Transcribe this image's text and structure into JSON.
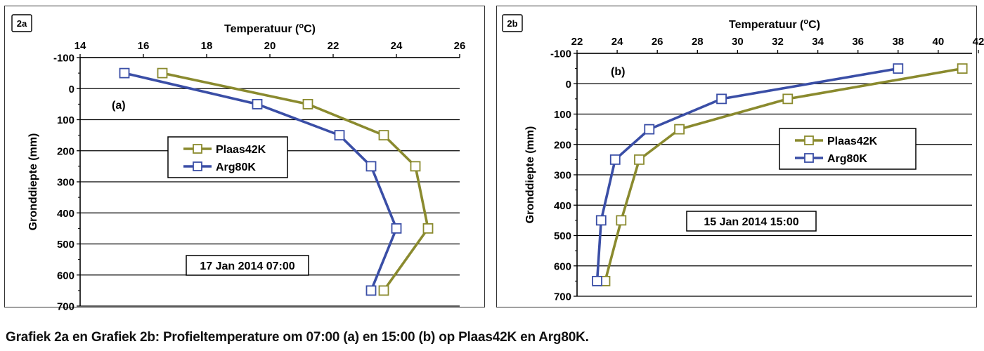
{
  "caption": "Grafiek 2a en Grafiek 2b: Profieltemperature om 07:00 (a) en 15:00 (b) op Plaas42K en Arg80K.",
  "colors": {
    "Plaas42K": "#8a8a2e",
    "Arg80K": "#3a4ea6",
    "grid": "#000000"
  },
  "chart_data": [
    {
      "type": "line",
      "panel_tag": "2a",
      "panel_letter": "(a)",
      "title": "Temperatuur (oC)",
      "xlabel": "Temperatuur (oC)",
      "ylabel": "Gronddiepte (mm)",
      "xlim": [
        14,
        26
      ],
      "xticks": [
        14,
        16,
        18,
        20,
        22,
        24,
        26
      ],
      "ylim": [
        -100,
        700
      ],
      "yticks": [
        -100,
        0,
        100,
        200,
        300,
        400,
        500,
        600,
        700
      ],
      "y_inverted": true,
      "annotation": "17 Jan 2014 07:00",
      "legend_placement": "left-center",
      "series": [
        {
          "name": "Plaas42K",
          "x": [
            16.6,
            21.2,
            23.6,
            24.6,
            25.0,
            23.6
          ],
          "y": [
            -50,
            50,
            150,
            250,
            450,
            650
          ]
        },
        {
          "name": "Arg80K",
          "x": [
            15.4,
            19.6,
            22.2,
            23.2,
            24.0,
            23.2
          ],
          "y": [
            -50,
            50,
            150,
            250,
            450,
            650
          ]
        }
      ]
    },
    {
      "type": "line",
      "panel_tag": "2b",
      "panel_letter": "(b)",
      "title": "Temperatuur (oC)",
      "xlabel": "Temperatuur (oC)",
      "ylabel": "Gronddiepte (mm)",
      "xlim": [
        22,
        42
      ],
      "xticks": [
        22,
        24,
        26,
        28,
        30,
        32,
        34,
        36,
        38,
        40,
        42
      ],
      "ylim": [
        -100,
        700
      ],
      "yticks": [
        -100,
        0,
        100,
        200,
        300,
        400,
        500,
        600,
        700
      ],
      "y_inverted": true,
      "annotation": "15 Jan 2014 15:00",
      "legend_placement": "right-center",
      "series": [
        {
          "name": "Plaas42K",
          "x": [
            41.2,
            32.5,
            27.1,
            25.1,
            24.2,
            23.4
          ],
          "y": [
            -50,
            50,
            150,
            250,
            450,
            650
          ]
        },
        {
          "name": "Arg80K",
          "x": [
            38.0,
            29.2,
            25.6,
            23.9,
            23.2,
            23.0
          ],
          "y": [
            -50,
            50,
            150,
            250,
            450,
            650
          ]
        }
      ]
    }
  ]
}
